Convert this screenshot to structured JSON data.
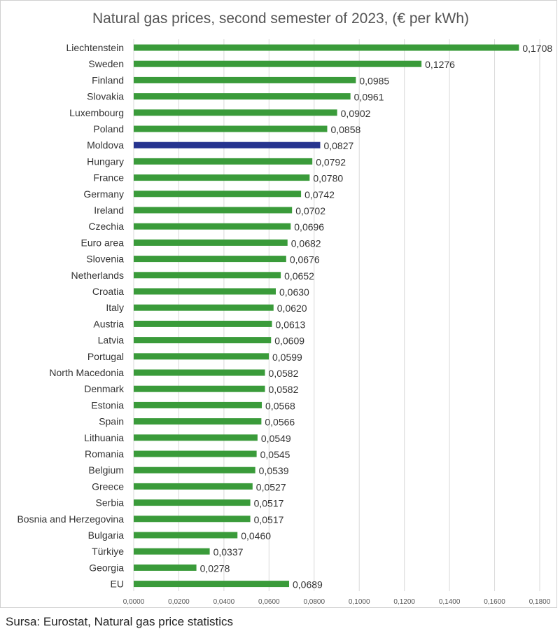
{
  "chart_data": {
    "type": "bar",
    "orientation": "horizontal",
    "title": "Natural gas prices, second semester of 2023, (€ per kWh)",
    "xlim": [
      0,
      0.18
    ],
    "x_ticks": [
      "0,0000",
      "0,0200",
      "0,0400",
      "0,0600",
      "0,0800",
      "0,1000",
      "0,1200",
      "0,1400",
      "0,1600",
      "0,1800"
    ],
    "grid": "vertical",
    "categories": [
      "Liechtenstein",
      "Sweden",
      "Finland",
      "Slovakia",
      "Luxembourg",
      "Poland",
      "Moldova",
      "Hungary",
      "France",
      "Germany",
      "Ireland",
      "Czechia",
      "Euro area",
      "Slovenia",
      "Netherlands",
      "Croatia",
      "Italy",
      "Austria",
      "Latvia",
      "Portugal",
      "North Macedonia",
      "Denmark",
      "Estonia",
      "Spain",
      "Lithuania",
      "Romania",
      "Belgium",
      "Greece",
      "Serbia",
      "Bosnia and Herzegovina",
      "Bulgaria",
      "Türkiye",
      "Georgia",
      "EU"
    ],
    "values": [
      0.1708,
      0.1276,
      0.0985,
      0.0961,
      0.0902,
      0.0858,
      0.0827,
      0.0792,
      0.078,
      0.0742,
      0.0702,
      0.0696,
      0.0682,
      0.0676,
      0.0652,
      0.063,
      0.062,
      0.0613,
      0.0609,
      0.0599,
      0.0582,
      0.0582,
      0.0568,
      0.0566,
      0.0549,
      0.0545,
      0.0539,
      0.0527,
      0.0517,
      0.0517,
      0.046,
      0.0337,
      0.0278,
      0.0689
    ],
    "value_labels": [
      "0,1708",
      "0,1276",
      "0,0985",
      "0,0961",
      "0,0902",
      "0,0858",
      "0,0827",
      "0,0792",
      "0,0780",
      "0,0742",
      "0,0702",
      "0,0696",
      "0,0682",
      "0,0676",
      "0,0652",
      "0,0630",
      "0,0620",
      "0,0613",
      "0,0609",
      "0,0599",
      "0,0582",
      "0,0582",
      "0,0568",
      "0,0566",
      "0,0549",
      "0,0545",
      "0,0539",
      "0,0527",
      "0,0517",
      "0,0517",
      "0,0460",
      "0,0337",
      "0,0278",
      "0,0689"
    ],
    "highlight": "Moldova",
    "colors": {
      "bar": "#3a9b3a",
      "highlight": "#26348f",
      "grid": "#d9d9d9"
    }
  },
  "source": "Sursa: Eurostat, Natural gas price statistics"
}
